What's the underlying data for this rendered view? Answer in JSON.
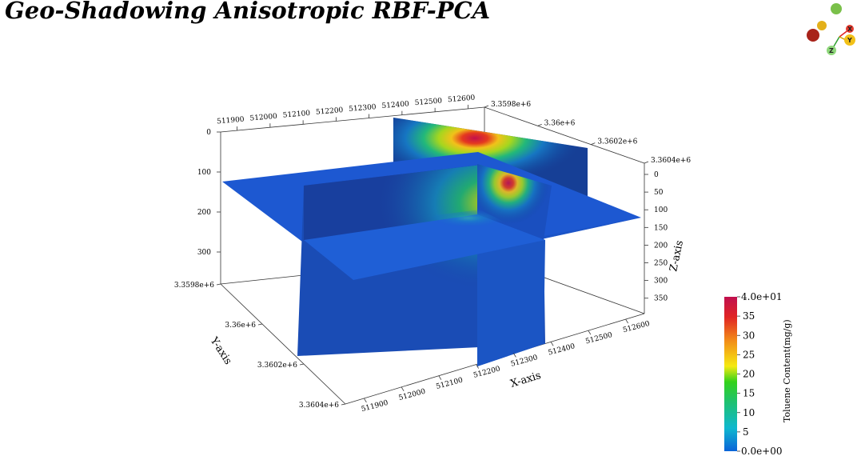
{
  "title": "Geo-Shadowing Anisotropic RBF-PCA",
  "chart_data": {
    "type": "heatmap",
    "title": "Geo-Shadowing Anisotropic RBF-PCA",
    "xlabel": "X-axis",
    "ylabel": "Y-axis",
    "zlabel": "Z-axis",
    "x_ticks_top": [
      "511900",
      "512000",
      "512100",
      "512200",
      "512300",
      "512400",
      "512500",
      "512600"
    ],
    "x_ticks_bottom": [
      "511900",
      "512000",
      "512100",
      "512200",
      "512300",
      "512400",
      "512500",
      "512600"
    ],
    "y_ticks_left": [
      "3.3598e+6",
      "3.36e+6",
      "3.3602e+6",
      "3.3604e+6"
    ],
    "y_ticks_top": [
      "3.3598e+6",
      "3.36e+6",
      "3.3602e+6",
      "3.3604e+6"
    ],
    "z_ticks_left": [
      "0",
      "100",
      "200",
      "300"
    ],
    "z_ticks_right": [
      "0",
      "50",
      "100",
      "150",
      "200",
      "250",
      "300",
      "350"
    ],
    "xlim": [
      511850,
      512650
    ],
    "ylim": [
      3359800,
      3360400
    ],
    "zlim": [
      0,
      380
    ],
    "slices": [
      {
        "plane": "horizontal",
        "orientation": "z-constant"
      },
      {
        "plane": "vertical",
        "orientation": "x-constant"
      },
      {
        "plane": "vertical",
        "orientation": "y-constant"
      }
    ],
    "colorbar": {
      "label": "Toluene Content(mg/g)",
      "min_label": "0.0e+00",
      "max_label": "4.0e+01",
      "ticks": [
        "35",
        "30",
        "25",
        "20",
        "15",
        "10",
        "5"
      ],
      "range": [
        0,
        40
      ],
      "colors": [
        "#0a63d8",
        "#0fb8cf",
        "#1fc16f",
        "#33d21a",
        "#f5ea12",
        "#f28a18",
        "#e02424",
        "#c0104f"
      ]
    },
    "peak_value": 40,
    "grid": false
  },
  "orientation_widget": {
    "x": "X",
    "y": "Y",
    "z": "Z"
  }
}
